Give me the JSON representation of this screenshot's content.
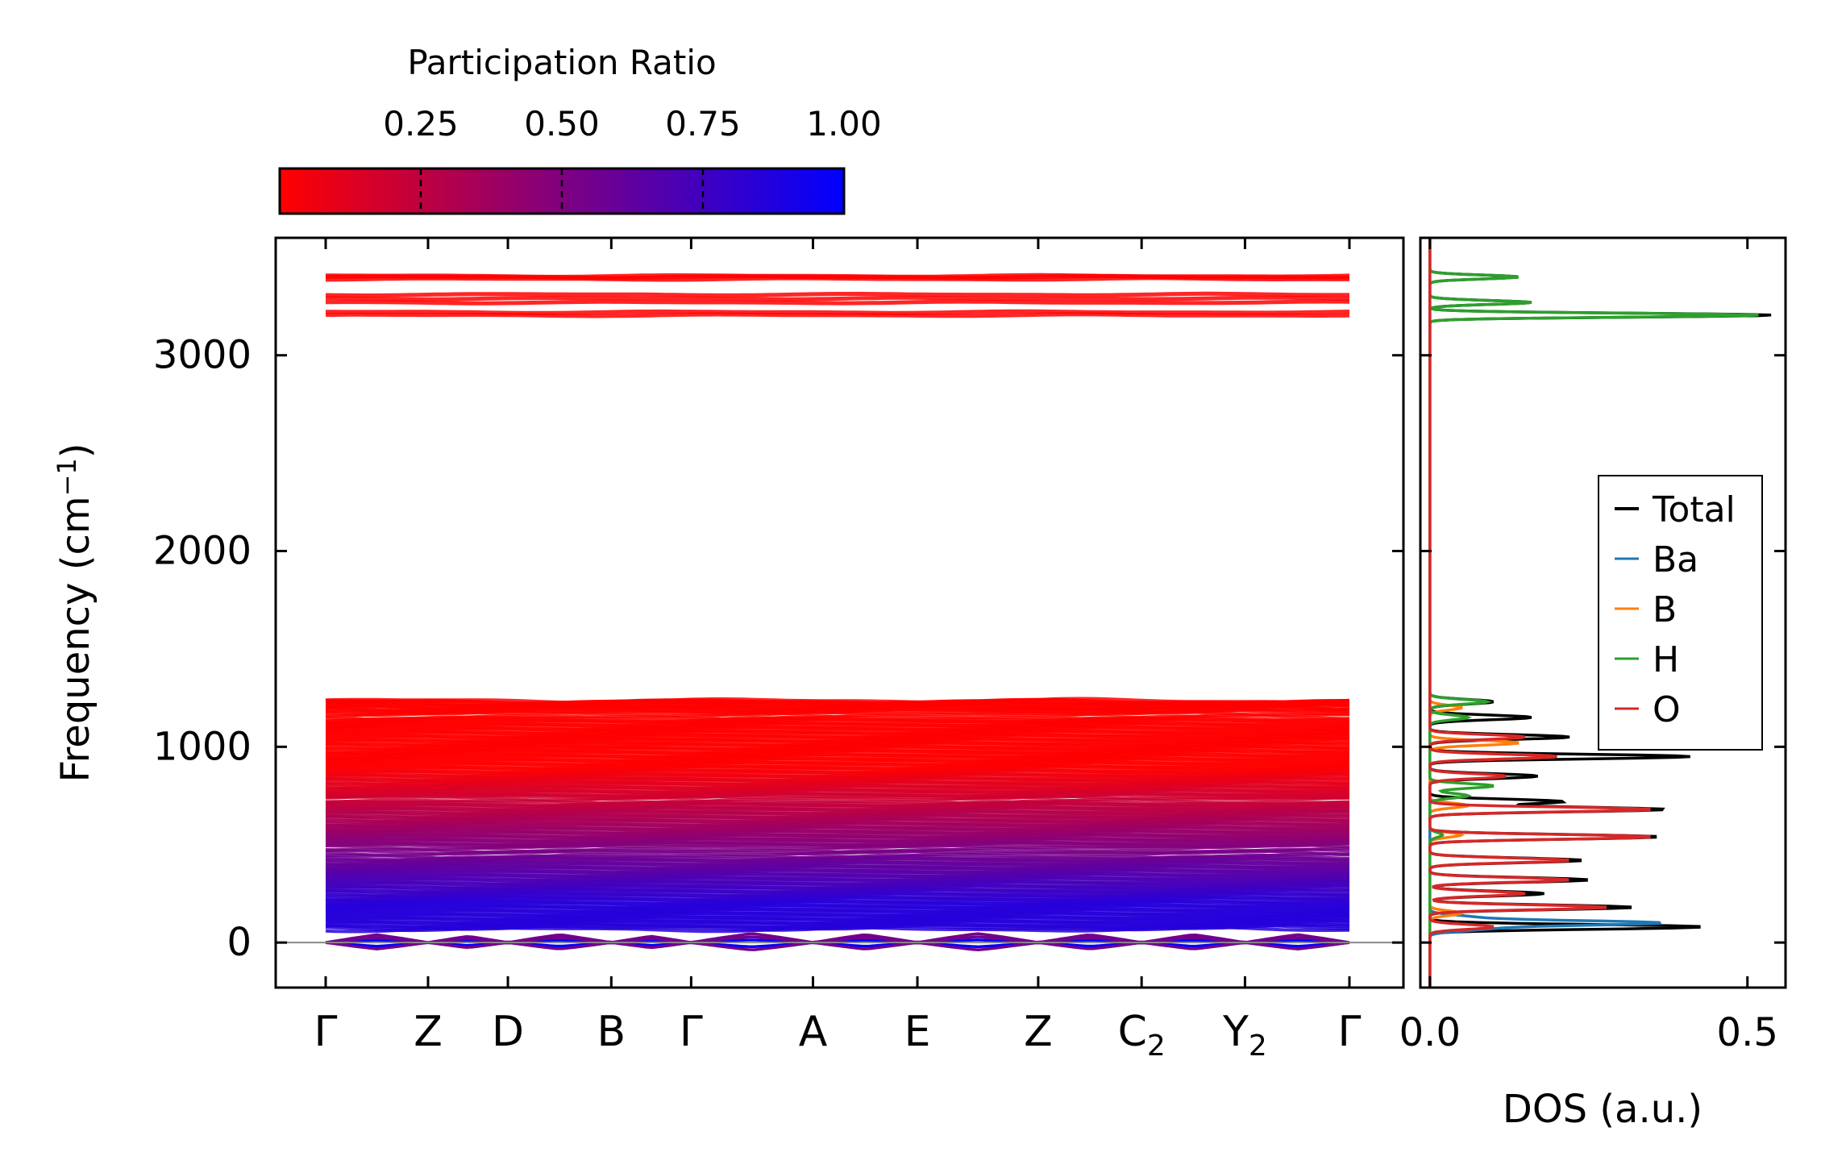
{
  "colorbar": {
    "title": "Participation Ratio",
    "range": [
      0.0,
      1.0
    ],
    "ticks": [
      "0.25",
      "0.50",
      "0.75",
      "1.00"
    ],
    "tick_values": [
      0.25,
      0.5,
      0.75,
      1.0
    ],
    "color_low": "#ff0000",
    "color_high": "#0000ff"
  },
  "chart_data": [
    {
      "type": "line",
      "name": "phonon band structure",
      "ylabel": "Frequency (cm",
      "ylabel_sup": "−1",
      "ylabel_end": ")",
      "ylim": [
        -230,
        3600
      ],
      "yticks": [
        0,
        1000,
        2000,
        3000
      ],
      "ytick_labels": [
        "0",
        "1000",
        "2000",
        "3000"
      ],
      "kpath": [
        {
          "label": "Γ",
          "sub": "",
          "pos": 0.0
        },
        {
          "label": "Z",
          "sub": "",
          "pos": 0.1
        },
        {
          "label": "D",
          "sub": "",
          "pos": 0.178
        },
        {
          "label": "B",
          "sub": "",
          "pos": 0.279
        },
        {
          "label": "Γ",
          "sub": "",
          "pos": 0.357
        },
        {
          "label": "A",
          "sub": "",
          "pos": 0.476
        },
        {
          "label": "E",
          "sub": "",
          "pos": 0.578
        },
        {
          "label": "Z",
          "sub": "",
          "pos": 0.696
        },
        {
          "label": "C",
          "sub": "2",
          "pos": 0.797
        },
        {
          "label": "Y",
          "sub": "2",
          "pos": 0.898
        },
        {
          "label": "Γ",
          "sub": "",
          "pos": 1.0
        }
      ],
      "bands": {
        "high": [
          3205,
          3220,
          3270,
          3290,
          3310,
          3390,
          3400,
          3405
        ],
        "mid": [
          1235,
          1230,
          1210,
          1200,
          1180,
          1150,
          1130,
          1110,
          1090,
          1070,
          1050,
          1030,
          1010,
          990,
          970,
          950,
          930,
          910,
          890,
          870,
          850,
          830,
          810,
          790,
          770,
          750,
          720,
          700,
          680,
          660,
          640,
          620,
          600,
          580,
          560,
          540,
          520,
          500,
          470,
          440,
          420,
          400,
          380,
          360,
          340,
          320,
          300,
          280,
          260,
          240,
          220,
          200,
          180,
          160,
          140,
          120,
          100,
          80
        ]
      },
      "zero_line": 0
    },
    {
      "type": "line",
      "name": "phonon DOS",
      "xlabel": "DOS (a.u.)",
      "xlim": [
        -0.015,
        0.56
      ],
      "xticks": [
        0.0,
        0.5
      ],
      "xtick_labels": [
        "0.0",
        "0.5"
      ],
      "ylim": [
        -230,
        3600
      ],
      "legend_position": "center-right",
      "series": [
        {
          "name": "Total",
          "color": "#000000",
          "peaks": [
            [
              3205,
              0.54
            ],
            [
              3270,
              0.16
            ],
            [
              3400,
              0.14
            ],
            [
              1230,
              0.1
            ],
            [
              1150,
              0.16
            ],
            [
              1050,
              0.22
            ],
            [
              950,
              0.41
            ],
            [
              850,
              0.17
            ],
            [
              720,
              0.21
            ],
            [
              680,
              0.37
            ],
            [
              540,
              0.36
            ],
            [
              420,
              0.24
            ],
            [
              320,
              0.25
            ],
            [
              250,
              0.18
            ],
            [
              180,
              0.32
            ],
            [
              80,
              0.43
            ]
          ]
        },
        {
          "name": "Ba",
          "color": "#1f77b4",
          "peaks": [
            [
              100,
              0.36
            ],
            [
              70,
              0.08
            ],
            [
              130,
              0.06
            ]
          ]
        },
        {
          "name": "B",
          "color": "#ff7f0e",
          "peaks": [
            [
              950,
              0.2
            ],
            [
              1020,
              0.14
            ],
            [
              1200,
              0.05
            ],
            [
              700,
              0.06
            ],
            [
              550,
              0.05
            ],
            [
              150,
              0.05
            ]
          ]
        },
        {
          "name": "H",
          "color": "#2ca02c",
          "peaks": [
            [
              3205,
              0.52
            ],
            [
              3270,
              0.16
            ],
            [
              3400,
              0.14
            ],
            [
              1230,
              0.09
            ],
            [
              1150,
              0.06
            ],
            [
              800,
              0.1
            ],
            [
              750,
              0.06
            ],
            [
              550,
              0.02
            ]
          ]
        },
        {
          "name": "O",
          "color": "#d62728",
          "peaks": [
            [
              1050,
              0.15
            ],
            [
              950,
              0.2
            ],
            [
              850,
              0.12
            ],
            [
              680,
              0.35
            ],
            [
              540,
              0.35
            ],
            [
              420,
              0.22
            ],
            [
              320,
              0.22
            ],
            [
              250,
              0.15
            ],
            [
              180,
              0.28
            ],
            [
              80,
              0.1
            ]
          ]
        }
      ]
    }
  ]
}
